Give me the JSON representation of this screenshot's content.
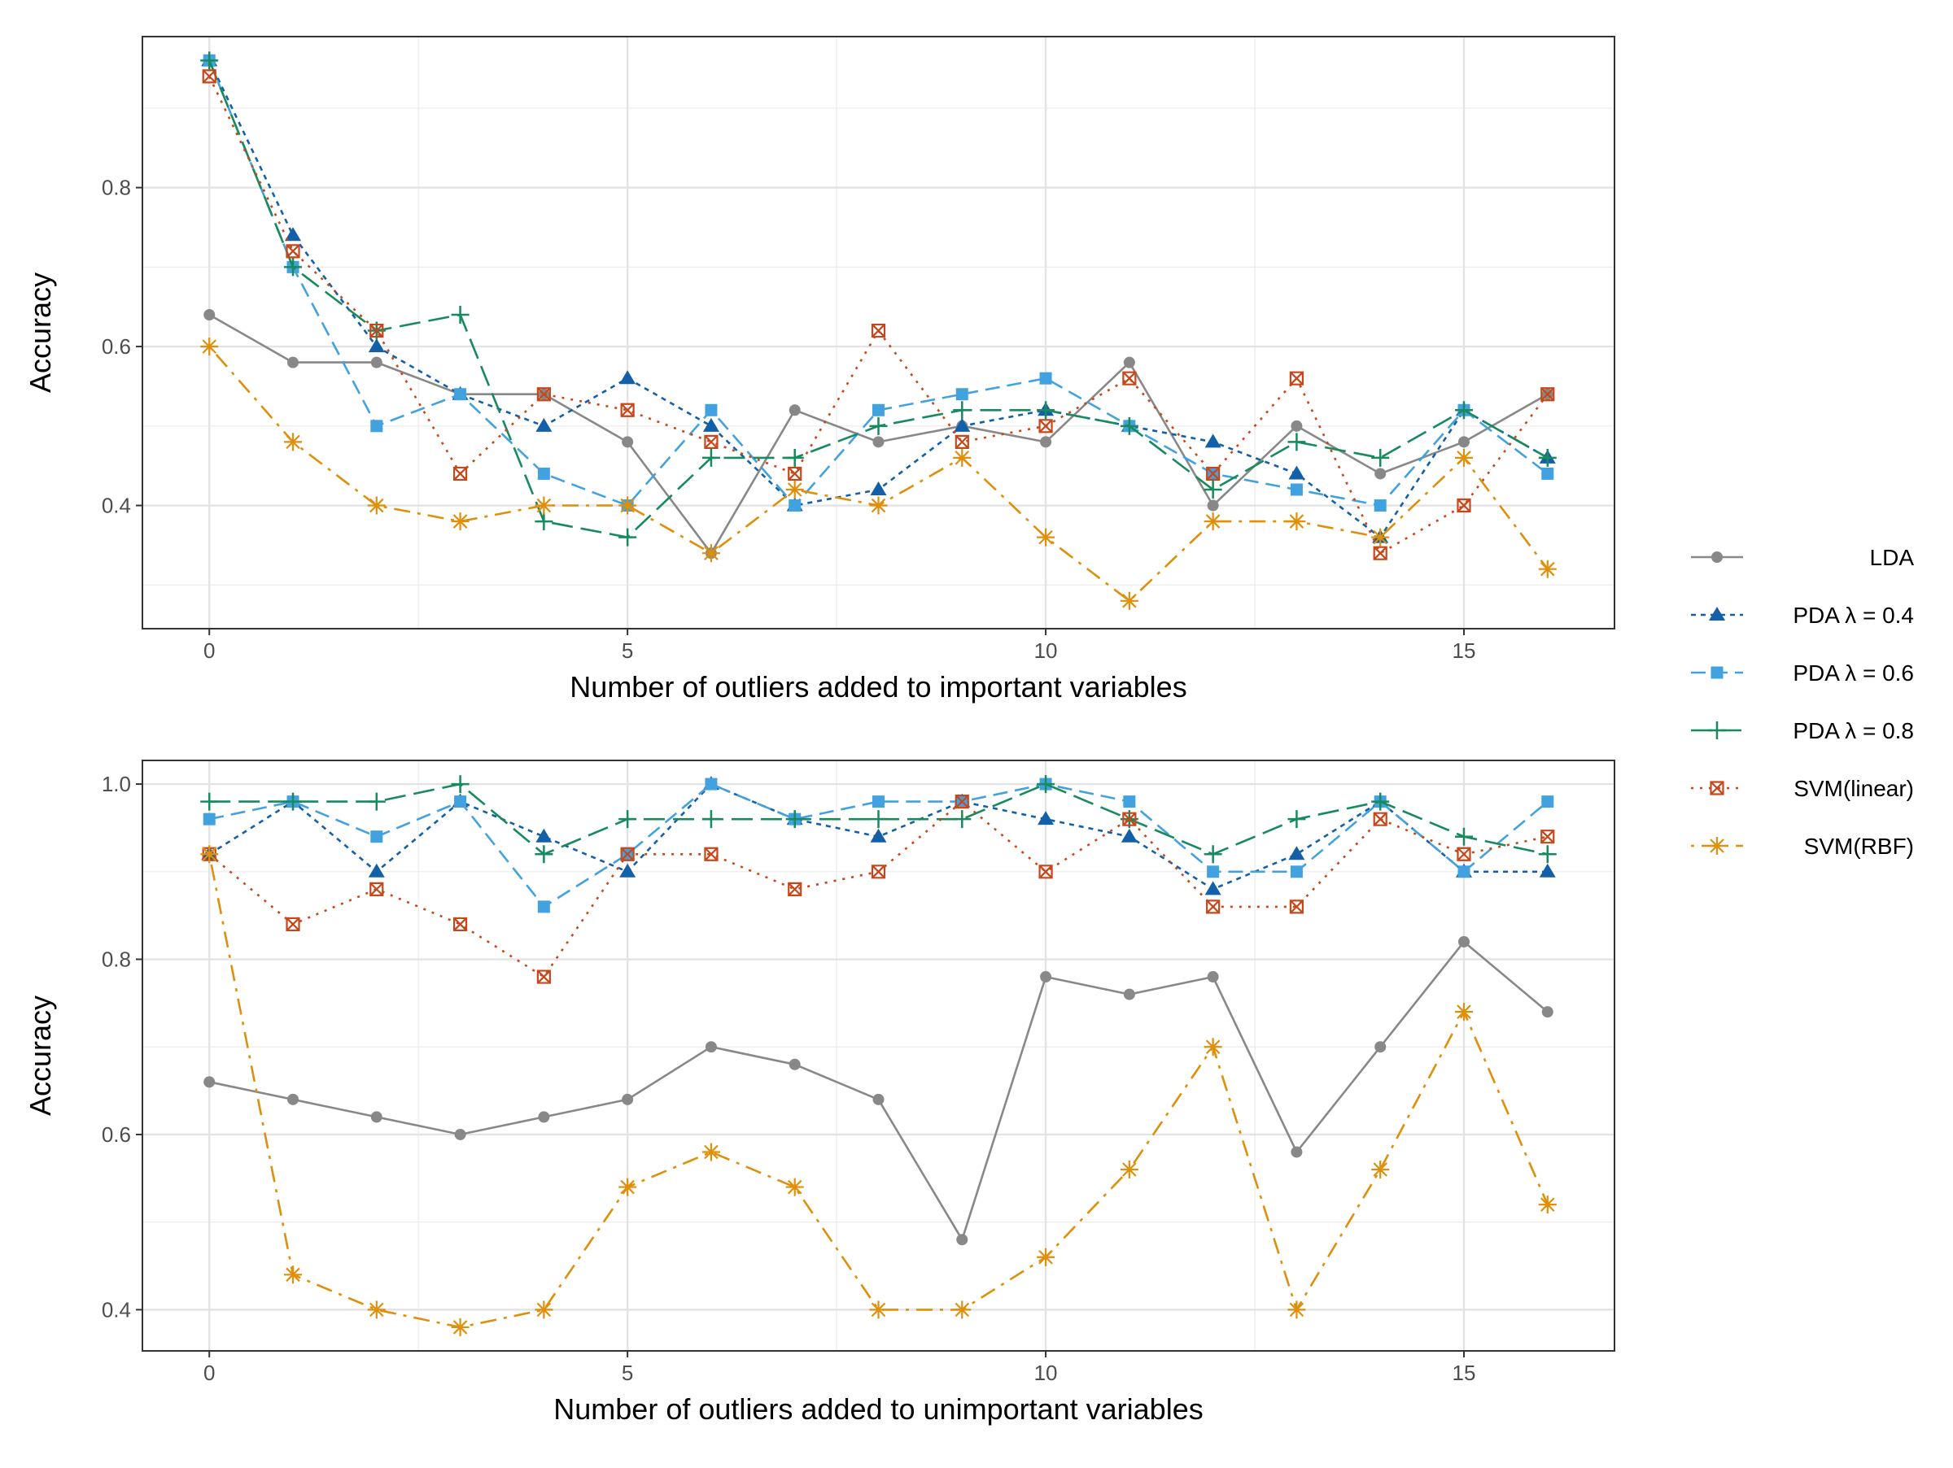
{
  "legend": [
    {
      "label": "LDA",
      "color": "#888888",
      "marker": "circle",
      "dash": "solid"
    },
    {
      "label": "PDA λ = 0.4",
      "color": "#1360A8",
      "marker": "triangle",
      "dash": "dotted"
    },
    {
      "label": "PDA λ = 0.6",
      "color": "#42A2E0",
      "marker": "square",
      "dash": "dashed"
    },
    {
      "label": "PDA λ = 0.8",
      "color": "#178A5E",
      "marker": "plus",
      "dash": "longdash"
    },
    {
      "label": "SVM(linear)",
      "color": "#C8471A",
      "marker": "boxcross",
      "dash": "dot"
    },
    {
      "label": "SVM(RBF)",
      "color": "#DF8F0A",
      "marker": "asterisk",
      "dash": "dotdash"
    }
  ],
  "chart_data": [
    {
      "type": "line",
      "xlabel": "Number of outliers added to important variables",
      "ylabel": "Accuracy",
      "xlim": [
        -0.8,
        16.8
      ],
      "ylim": [
        0.245,
        0.99
      ],
      "xticks": [
        0,
        5,
        10,
        15
      ],
      "yticks": [
        0.4,
        0.6,
        0.8
      ],
      "ytick_labels": [
        "0.4",
        "0.6",
        "0.8"
      ],
      "grid": true,
      "x": [
        0,
        1,
        2,
        3,
        4,
        5,
        6,
        7,
        8,
        9,
        10,
        11,
        12,
        13,
        14,
        15,
        16
      ],
      "series": [
        {
          "name": "LDA",
          "values": [
            0.64,
            0.58,
            0.58,
            0.54,
            0.54,
            0.48,
            0.34,
            0.52,
            0.48,
            0.5,
            0.48,
            0.58,
            0.4,
            0.5,
            0.44,
            0.48,
            0.54
          ]
        },
        {
          "name": "PDA λ = 0.4",
          "values": [
            0.96,
            0.74,
            0.6,
            0.54,
            0.5,
            0.56,
            0.5,
            0.4,
            0.42,
            0.5,
            0.52,
            0.5,
            0.48,
            0.44,
            0.36,
            0.52,
            0.46
          ]
        },
        {
          "name": "PDA λ = 0.6",
          "values": [
            0.96,
            0.7,
            0.5,
            0.54,
            0.44,
            0.4,
            0.52,
            0.4,
            0.52,
            0.54,
            0.56,
            0.5,
            0.44,
            0.42,
            0.4,
            0.52,
            0.44
          ]
        },
        {
          "name": "PDA λ = 0.8",
          "values": [
            0.96,
            0.7,
            0.62,
            0.64,
            0.38,
            0.36,
            0.46,
            0.46,
            0.5,
            0.52,
            0.52,
            0.5,
            0.42,
            0.48,
            0.46,
            0.52,
            0.46
          ]
        },
        {
          "name": "SVM(linear)",
          "values": [
            0.94,
            0.72,
            0.62,
            0.44,
            0.54,
            0.52,
            0.48,
            0.44,
            0.62,
            0.48,
            0.5,
            0.56,
            0.44,
            0.56,
            0.34,
            0.4,
            0.54
          ]
        },
        {
          "name": "SVM(RBF)",
          "values": [
            0.6,
            0.48,
            0.4,
            0.38,
            0.4,
            0.4,
            0.34,
            0.42,
            0.4,
            0.46,
            0.36,
            0.28,
            0.38,
            0.38,
            0.36,
            0.46,
            0.32
          ]
        }
      ]
    },
    {
      "type": "line",
      "xlabel": "Number of outliers added to unimportant variables",
      "ylabel": "Accuracy",
      "xlim": [
        -0.8,
        16.8
      ],
      "ylim": [
        0.353,
        1.027
      ],
      "xticks": [
        0,
        5,
        10,
        15
      ],
      "yticks": [
        0.4,
        0.6,
        0.8,
        1.0
      ],
      "ytick_labels": [
        "0.4",
        "0.6",
        "0.8",
        "1.0"
      ],
      "grid": true,
      "x": [
        0,
        1,
        2,
        3,
        4,
        5,
        6,
        7,
        8,
        9,
        10,
        11,
        12,
        13,
        14,
        15,
        16
      ],
      "series": [
        {
          "name": "LDA",
          "values": [
            0.66,
            0.64,
            0.62,
            0.6,
            0.62,
            0.64,
            0.7,
            0.68,
            0.64,
            0.48,
            0.78,
            0.76,
            0.78,
            0.58,
            0.7,
            0.82,
            0.74
          ]
        },
        {
          "name": "PDA λ = 0.4",
          "values": [
            0.92,
            0.98,
            0.9,
            0.98,
            0.94,
            0.9,
            1.0,
            0.96,
            0.94,
            0.98,
            0.96,
            0.94,
            0.88,
            0.92,
            0.98,
            0.9,
            0.9
          ]
        },
        {
          "name": "PDA λ = 0.6",
          "values": [
            0.96,
            0.98,
            0.94,
            0.98,
            0.86,
            0.92,
            1.0,
            0.96,
            0.98,
            0.98,
            1.0,
            0.98,
            0.9,
            0.9,
            0.98,
            0.9,
            0.98
          ]
        },
        {
          "name": "PDA λ = 0.8",
          "values": [
            0.98,
            0.98,
            0.98,
            1.0,
            0.92,
            0.96,
            0.96,
            0.96,
            0.96,
            0.96,
            1.0,
            0.96,
            0.92,
            0.96,
            0.98,
            0.94,
            0.92
          ]
        },
        {
          "name": "SVM(linear)",
          "values": [
            0.92,
            0.84,
            0.88,
            0.84,
            0.78,
            0.92,
            0.92,
            0.88,
            0.9,
            0.98,
            0.9,
            0.96,
            0.86,
            0.86,
            0.96,
            0.92,
            0.94
          ]
        },
        {
          "name": "SVM(RBF)",
          "values": [
            0.92,
            0.44,
            0.4,
            0.38,
            0.4,
            0.54,
            0.58,
            0.54,
            0.4,
            0.4,
            0.46,
            0.56,
            0.7,
            0.4,
            0.56,
            0.74,
            0.52
          ]
        }
      ]
    }
  ]
}
